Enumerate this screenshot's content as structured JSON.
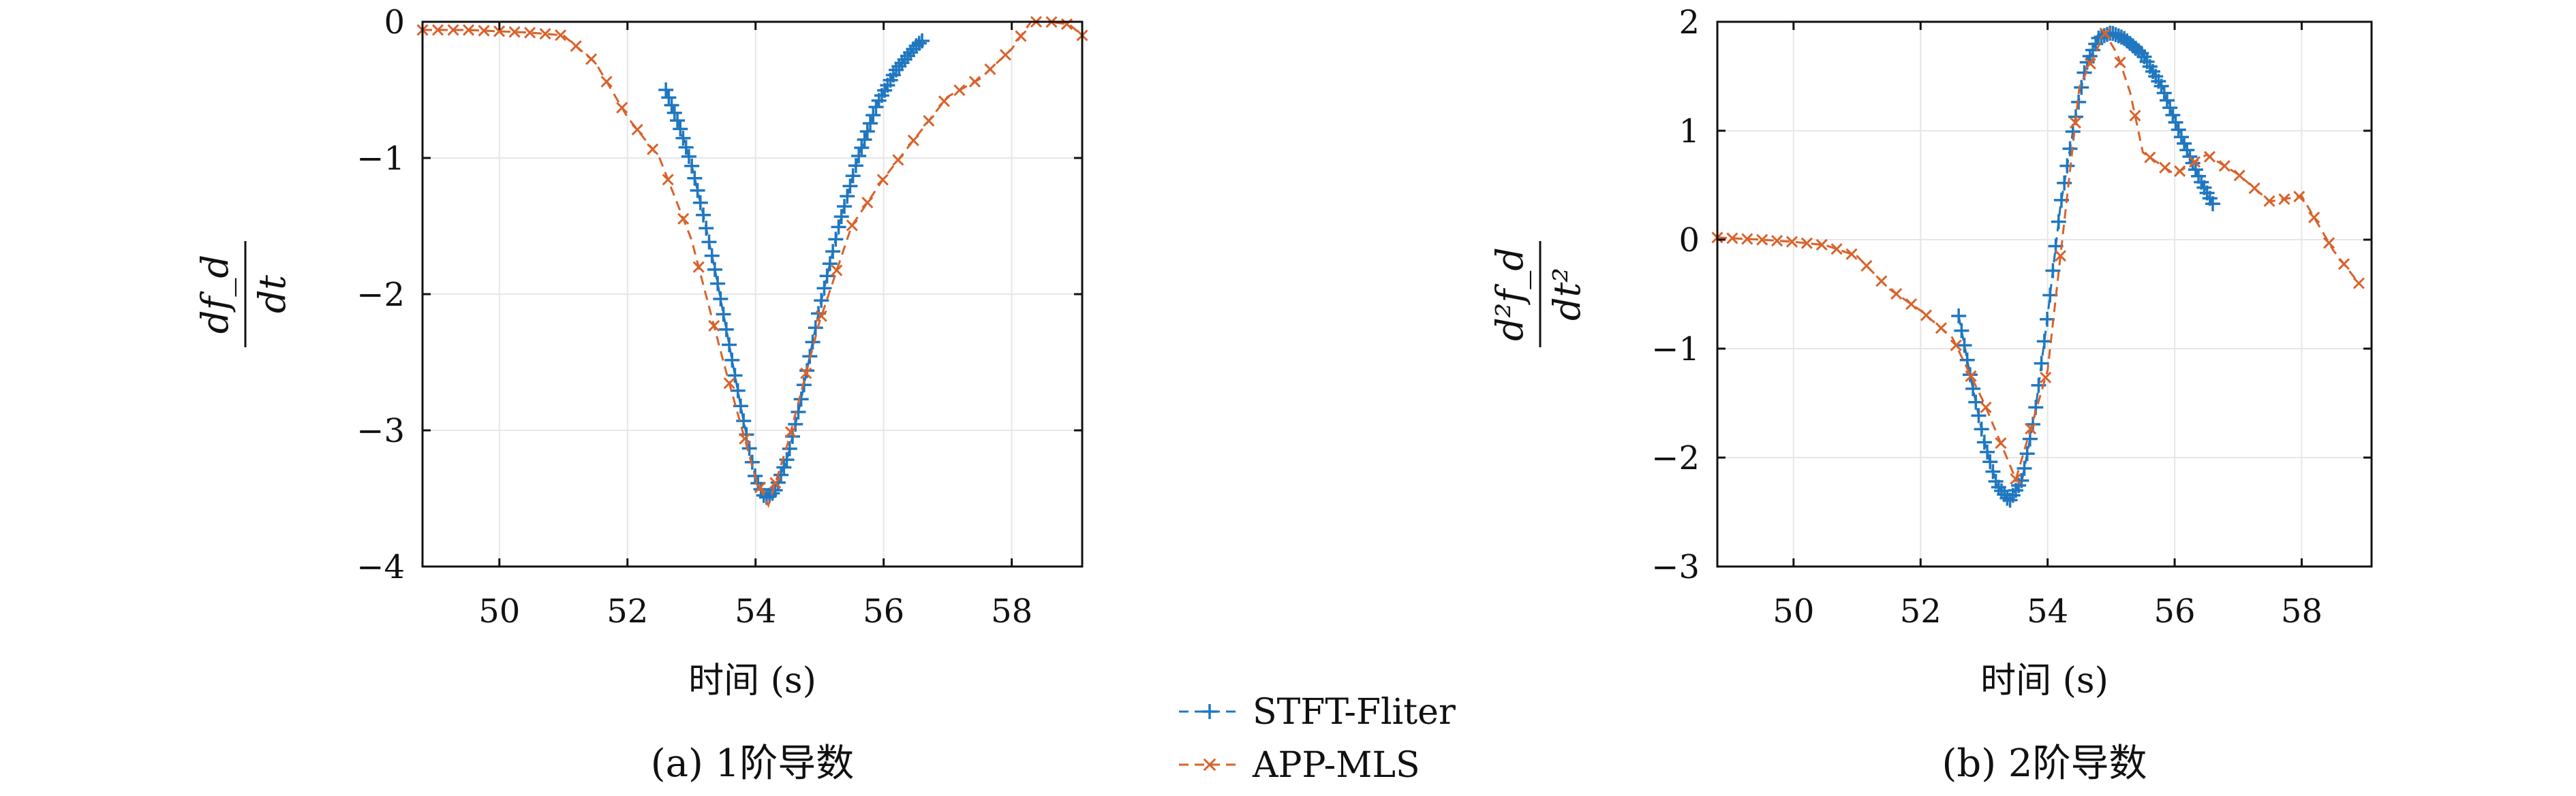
{
  "colors": {
    "stft": "#1f77c0",
    "app": "#d9622b",
    "grid": "#e6e6e6",
    "axis": "#111111"
  },
  "legend": [
    {
      "name": "STFT-Fliter",
      "series_key": "stft",
      "marker": "plus"
    },
    {
      "name": "APP-MLS",
      "series_key": "app",
      "marker": "cross"
    }
  ],
  "chart_data": [
    {
      "type": "line",
      "caption": "(a) 1阶导数",
      "xlabel": "时间 (s)",
      "ylabel_num": "df_d",
      "ylabel_den": "dt",
      "xlim": [
        48.8,
        59.1
      ],
      "ylim": [
        -4,
        0
      ],
      "xticks": [
        50,
        52,
        54,
        56,
        58
      ],
      "yticks": [
        0,
        -1,
        -2,
        -3,
        -4
      ],
      "ytick_labels": [
        "0",
        "−1",
        "−2",
        "−3",
        "−4"
      ],
      "grid": true,
      "series": [
        {
          "name": "STFT-Fliter",
          "x": [
            52.6,
            52.8,
            53.0,
            53.2,
            53.4,
            53.6,
            53.8,
            54.0,
            54.15,
            54.3,
            54.5,
            54.7,
            55.0,
            55.3,
            55.6,
            55.9,
            56.2,
            56.5,
            56.6
          ],
          "y": [
            -0.5,
            -0.75,
            -1.05,
            -1.45,
            -1.9,
            -2.4,
            -2.9,
            -3.35,
            -3.5,
            -3.45,
            -3.2,
            -2.8,
            -2.1,
            -1.5,
            -1.0,
            -0.6,
            -0.35,
            -0.18,
            -0.14
          ]
        },
        {
          "name": "APP-MLS",
          "x": [
            48.8,
            49.5,
            50.0,
            50.5,
            51.0,
            51.5,
            52.0,
            52.5,
            53.0,
            53.5,
            54.0,
            54.2,
            54.5,
            55.0,
            55.5,
            56.0,
            56.5,
            57.0,
            57.5,
            58.0,
            58.3,
            58.6,
            58.9,
            59.1
          ],
          "y": [
            -0.06,
            -0.06,
            -0.07,
            -0.08,
            -0.1,
            -0.3,
            -0.7,
            -1.0,
            -1.6,
            -2.5,
            -3.35,
            -3.55,
            -3.1,
            -2.2,
            -1.5,
            -1.15,
            -0.85,
            -0.55,
            -0.42,
            -0.2,
            0.0,
            0.0,
            -0.02,
            -0.1
          ]
        }
      ]
    },
    {
      "type": "line",
      "caption": "(b) 2阶导数",
      "xlabel": "时间 (s)",
      "ylabel_num": "d²f_d",
      "ylabel_den": "dt²",
      "xlim": [
        48.8,
        59.1
      ],
      "ylim": [
        -3,
        2
      ],
      "xticks": [
        50,
        52,
        54,
        56,
        58
      ],
      "yticks": [
        2,
        1,
        0,
        -1,
        -2,
        -3
      ],
      "ytick_labels": [
        "2",
        "1",
        "0",
        "−1",
        "−2",
        "−3"
      ],
      "grid": true,
      "series": [
        {
          "name": "STFT-Fliter",
          "x": [
            52.6,
            52.8,
            53.0,
            53.2,
            53.4,
            53.6,
            53.8,
            54.0,
            54.2,
            54.4,
            54.6,
            54.8,
            55.0,
            55.2,
            55.5,
            55.8,
            56.1,
            56.4,
            56.6
          ],
          "y": [
            -0.7,
            -1.3,
            -1.85,
            -2.25,
            -2.4,
            -2.2,
            -1.6,
            -0.7,
            0.3,
            1.0,
            1.6,
            1.85,
            1.9,
            1.85,
            1.7,
            1.4,
            0.95,
            0.55,
            0.33
          ]
        },
        {
          "name": "APP-MLS",
          "x": [
            48.8,
            49.5,
            50.0,
            50.5,
            51.0,
            51.5,
            52.0,
            52.5,
            53.0,
            53.5,
            54.0,
            54.5,
            54.9,
            55.1,
            55.3,
            55.5,
            56.0,
            56.5,
            57.0,
            57.5,
            58.0,
            58.5,
            58.9
          ],
          "y": [
            0.02,
            0.0,
            -0.02,
            -0.05,
            -0.15,
            -0.45,
            -0.65,
            -0.9,
            -1.5,
            -2.2,
            -1.2,
            1.4,
            1.9,
            1.7,
            1.35,
            0.8,
            0.6,
            0.78,
            0.6,
            0.35,
            0.4,
            -0.1,
            -0.4
          ]
        }
      ]
    }
  ]
}
